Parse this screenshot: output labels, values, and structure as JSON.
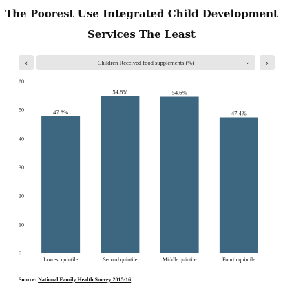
{
  "title": {
    "line1": "The Poorest Use Integrated Child Development",
    "line2": "Services The Least"
  },
  "selector": {
    "prev_icon": "‹",
    "next_icon": "›",
    "selected": "Children Received food supplements (%)",
    "caret_icon": "⌄"
  },
  "source": {
    "label": "Source:",
    "link_text": "National Family Health Survey 2015-16"
  },
  "chart_data": {
    "type": "bar",
    "categories": [
      "Lowest quintile",
      "Second quintile",
      "Middle quintile",
      "Fourth quintile"
    ],
    "values": [
      47.8,
      54.8,
      54.6,
      47.4
    ],
    "data_labels": [
      "47.8%",
      "54.8%",
      "54.6%",
      "47.4%"
    ],
    "ylim": [
      0,
      60
    ],
    "yticks": [
      0,
      10,
      20,
      30,
      40,
      50,
      60
    ],
    "bar_color": "#3d6680",
    "grid": false
  }
}
